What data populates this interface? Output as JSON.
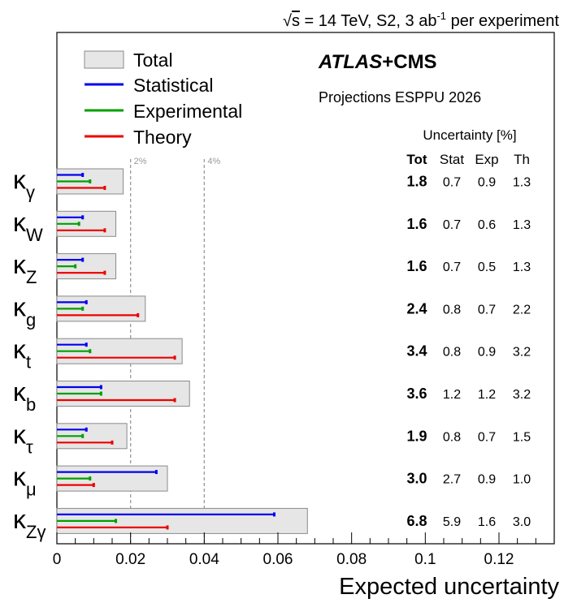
{
  "chart_data": {
    "type": "bar",
    "orientation": "horizontal",
    "header": {
      "sqrt_symbol": "√",
      "sqrt_arg": "s",
      "energy_text": " = 14 TeV, S2, 3 ab",
      "lumi_superscript": "-1",
      "tail_text": " per experiment"
    },
    "experiment": {
      "name_italic": "ATLAS",
      "name_rest": "+CMS",
      "subtitle": "Projections ESPPU 2026"
    },
    "legend": {
      "position": "top-left",
      "entries": [
        {
          "label": "Total",
          "kind": "box"
        },
        {
          "label": "Statistical",
          "kind": "line",
          "color": "#0000ee"
        },
        {
          "label": "Experimental",
          "kind": "line",
          "color": "#00a000"
        },
        {
          "label": "Theory",
          "kind": "line",
          "color": "#ee0000"
        }
      ]
    },
    "colors": {
      "total_fill": "#e6e6e6",
      "total_stroke": "#8a8a8a",
      "stat": "#0000ee",
      "exp": "#00a000",
      "th": "#ee0000",
      "reference": "#9a9a9a"
    },
    "reference_lines": [
      {
        "value": 0.02,
        "label": "2%"
      },
      {
        "value": 0.04,
        "label": "4%"
      }
    ],
    "table": {
      "title": "Uncertainty [%]",
      "headers": [
        "Tot",
        "Stat",
        "Exp",
        "Th"
      ]
    },
    "xlabel": "Expected uncertainty",
    "xlim": [
      0,
      0.135
    ],
    "xticks": [
      "0",
      "0.02",
      "0.04",
      "0.06",
      "0.08",
      "0.1",
      "0.12"
    ],
    "xtick_values": [
      0,
      0.02,
      0.04,
      0.06,
      0.08,
      0.1,
      0.12
    ],
    "rows": [
      {
        "kappa": "κ",
        "sub": "γ",
        "tot": "1.8",
        "stat": "0.7",
        "exp": "0.9",
        "th": "1.3"
      },
      {
        "kappa": "κ",
        "sub": "W",
        "tot": "1.6",
        "stat": "0.7",
        "exp": "0.6",
        "th": "1.3"
      },
      {
        "kappa": "κ",
        "sub": "Z",
        "tot": "1.6",
        "stat": "0.7",
        "exp": "0.5",
        "th": "1.3"
      },
      {
        "kappa": "κ",
        "sub": "g",
        "tot": "2.4",
        "stat": "0.8",
        "exp": "0.7",
        "th": "2.2"
      },
      {
        "kappa": "κ",
        "sub": "t",
        "tot": "3.4",
        "stat": "0.8",
        "exp": "0.9",
        "th": "3.2"
      },
      {
        "kappa": "κ",
        "sub": "b",
        "tot": "3.6",
        "stat": "1.2",
        "exp": "1.2",
        "th": "3.2"
      },
      {
        "kappa": "κ",
        "sub": "τ",
        "tot": "1.9",
        "stat": "0.8",
        "exp": "0.7",
        "th": "1.5"
      },
      {
        "kappa": "κ",
        "sub": "μ",
        "tot": "3.0",
        "stat": "2.7",
        "exp": "0.9",
        "th": "1.0"
      },
      {
        "kappa": "κ",
        "sub": "Zγ",
        "tot": "6.8",
        "stat": "5.9",
        "exp": "1.6",
        "th": "3.0"
      }
    ]
  }
}
